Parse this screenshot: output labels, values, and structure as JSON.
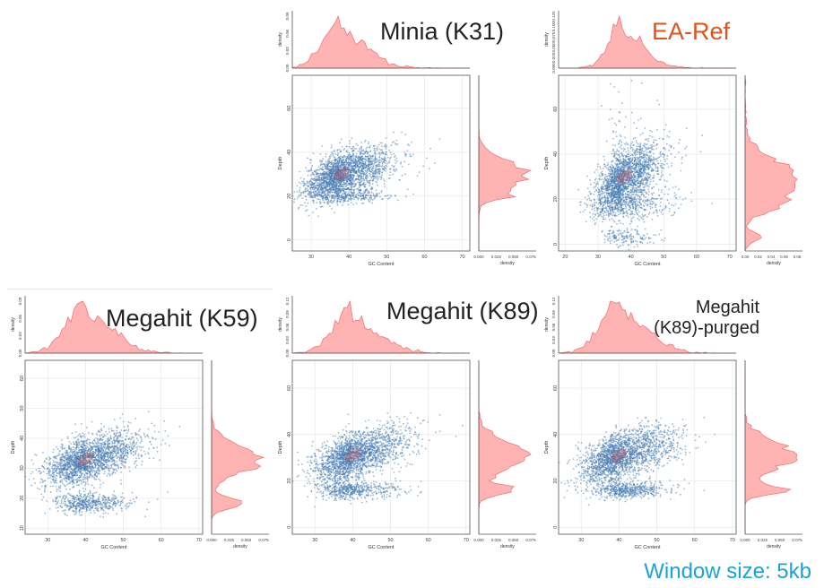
{
  "footer_text": "Window size: 5kb",
  "colors": {
    "scatter": "#4a7fb5",
    "density_fill": "#ffb3b3",
    "density_line": "#f26b6b",
    "core": "#b5485a",
    "title_accent": "#e0531a",
    "footer": "#1aa3d9"
  },
  "chart_data": [
    {
      "type": "scatter",
      "title": "Minia (K31)",
      "xlabel": "GC Content",
      "ylabel": "Depth",
      "xticks": [
        "30",
        "40",
        "50",
        "60",
        "70"
      ],
      "xlim": [
        25,
        72
      ],
      "yticks": [
        "0",
        "20",
        "40",
        "60"
      ],
      "ylim": [
        -5,
        75
      ],
      "top_density_ticks": [
        "0.00",
        "0.03",
        "0.06",
        "0.09"
      ],
      "top_density_label": "density",
      "right_density_ticks": [
        "0.000",
        "0.025",
        "0.050",
        "0.075"
      ],
      "right_density_label": "density",
      "clusters": [
        {
          "x": 38,
          "y": 30,
          "sx": 5.5,
          "sy": 6,
          "rho": 0.55,
          "weight": 0.9
        },
        {
          "x": 40,
          "y": 20,
          "sx": 5,
          "sy": 1.5,
          "rho": 0.1,
          "weight": 0.1
        }
      ]
    },
    {
      "type": "scatter",
      "title": "EA-Ref",
      "xlabel": "GC Content",
      "ylabel": "Depth",
      "xticks": [
        "20",
        "30",
        "40",
        "50",
        "60",
        "70"
      ],
      "xlim": [
        18,
        72
      ],
      "yticks": [
        "0",
        "20",
        "40",
        "60"
      ],
      "ylim": [
        -3,
        75
      ],
      "top_density_ticks": [
        "0.000",
        "0.025",
        "0.050",
        "0.075",
        "0.100",
        "0.125"
      ],
      "top_density_label": "density",
      "right_density_ticks": [
        "0.00",
        "0.02",
        "0.04",
        "0.06",
        "0.08"
      ],
      "right_density_label": "density",
      "clusters": [
        {
          "x": 38,
          "y": 30,
          "sx": 5,
          "sy": 7,
          "rho": 0.55,
          "weight": 0.68
        },
        {
          "x": 38,
          "y": 18,
          "sx": 6,
          "sy": 4,
          "rho": 0.2,
          "weight": 0.2
        },
        {
          "x": 38,
          "y": 3,
          "sx": 4,
          "sy": 2,
          "rho": 0,
          "weight": 0.06
        },
        {
          "x": 37,
          "y": 35,
          "sx": 3,
          "sy": 16,
          "rho": 0,
          "weight": 0.06
        }
      ]
    },
    {
      "type": "scatter",
      "title": "Megahit (K59)",
      "xlabel": "GC Content",
      "ylabel": "Depth",
      "xticks": [
        "30",
        "40",
        "50",
        "60",
        "70"
      ],
      "xlim": [
        24,
        71
      ],
      "yticks": [
        "10",
        "20",
        "30",
        "40",
        "50",
        "60"
      ],
      "ylim": [
        8,
        66
      ],
      "top_density_ticks": [
        "0.00",
        "0.03",
        "0.06",
        "0.09"
      ],
      "top_density_label": "density",
      "right_density_ticks": [
        "0.000",
        "0.025",
        "0.050",
        "0.075"
      ],
      "right_density_label": "density",
      "clusters": [
        {
          "x": 40,
          "y": 33,
          "sx": 6,
          "sy": 4.5,
          "rho": 0.55,
          "weight": 0.8
        },
        {
          "x": 40,
          "y": 18.5,
          "sx": 5,
          "sy": 1.6,
          "rho": 0.1,
          "weight": 0.2
        }
      ]
    },
    {
      "type": "scatter",
      "title": "Megahit (K89)",
      "xlabel": "GC Content",
      "ylabel": "Depth",
      "xticks": [
        "30",
        "40",
        "50",
        "60",
        "70"
      ],
      "xlim": [
        24,
        71
      ],
      "yticks": [
        "0",
        "20",
        "40",
        "60"
      ],
      "ylim": [
        -3,
        72
      ],
      "top_density_ticks": [
        "0.00",
        "0.03",
        "0.06",
        "0.09",
        "0.12"
      ],
      "top_density_label": "density",
      "right_density_ticks": [
        "0.000",
        "0.025",
        "0.050",
        "0.075"
      ],
      "right_density_label": "density",
      "clusters": [
        {
          "x": 40,
          "y": 31,
          "sx": 6,
          "sy": 6,
          "rho": 0.55,
          "weight": 0.8
        },
        {
          "x": 40,
          "y": 16,
          "sx": 5,
          "sy": 2,
          "rho": 0.1,
          "weight": 0.2
        }
      ]
    },
    {
      "type": "scatter",
      "title_lines": [
        "Megahit",
        "(K89)-purged"
      ],
      "xlabel": "GC Content",
      "ylabel": "Depth",
      "xticks": [
        "30",
        "40",
        "50",
        "60",
        "70"
      ],
      "xlim": [
        24,
        71
      ],
      "yticks": [
        "0",
        "20",
        "40",
        "60"
      ],
      "ylim": [
        -3,
        72
      ],
      "top_density_ticks": [
        "0.00",
        "0.03",
        "0.06",
        "0.09",
        "0.12"
      ],
      "top_density_label": "density",
      "right_density_ticks": [
        "0.000",
        "0.025",
        "0.050",
        "0.075"
      ],
      "right_density_label": "density",
      "clusters": [
        {
          "x": 40,
          "y": 31,
          "sx": 6,
          "sy": 6,
          "rho": 0.55,
          "weight": 0.8
        },
        {
          "x": 42,
          "y": 16,
          "sx": 4.5,
          "sy": 2,
          "rho": 0.1,
          "weight": 0.2
        }
      ]
    }
  ]
}
